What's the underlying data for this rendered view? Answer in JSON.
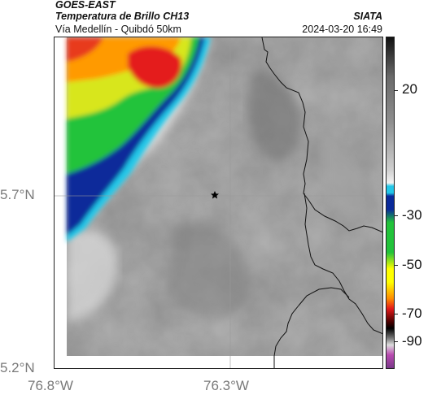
{
  "header": {
    "satellite": "GOES-EAST",
    "product": "Temperatura de Brillo CH13",
    "route": "Vía Medellín - Quibdó 50km",
    "organization": "SIATA",
    "datetime": "2024-03-20 16:49"
  },
  "map": {
    "latitude_labels": [
      "5.7°N",
      "5.2°N"
    ],
    "longitude_labels": [
      "76.8°W",
      "76.3°W"
    ],
    "marker_icon": "star-icon"
  },
  "colorbar": {
    "tick_labels": [
      "20",
      "-30",
      "-50",
      "-70",
      "-90"
    ],
    "colors": {
      "warm_gray": "#8c8c8c",
      "cyan": "#22c7e8",
      "blue": "#0a2a9a",
      "green": "#22c33a",
      "yellow": "#ffff00",
      "orange": "#ff8c00",
      "red": "#e41a1a",
      "magenta": "#b94ab0"
    }
  }
}
